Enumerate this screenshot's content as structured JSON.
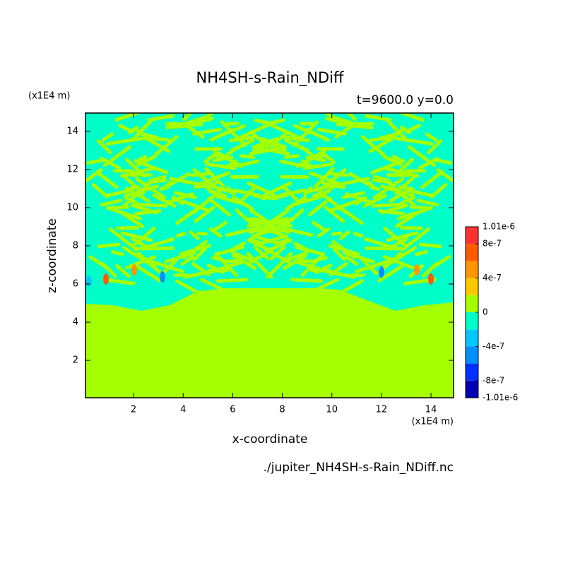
{
  "chart_data": {
    "type": "contour",
    "title": "NH4SH-s-Rain_NDiff",
    "subtitle": "t=9600.0 y=0.0",
    "x_label": "x-coordinate",
    "y_label": "z-coordinate",
    "x_unit": "(x1E4 m)",
    "y_unit": "(x1E4 m)",
    "footer": "./jupiter_NH4SH-s-Rain_NDiff.nc",
    "xlim": [
      0.06,
      14.91
    ],
    "ylim": [
      0.04,
      14.96
    ],
    "xticks": [
      2,
      4,
      6,
      8,
      10,
      12,
      14
    ],
    "yticks": [
      2,
      4,
      6,
      8,
      10,
      12,
      14
    ],
    "levels": [
      -1.01e-06,
      -8e-07,
      -6e-07,
      -4e-07,
      -2e-07,
      0,
      2e-07,
      4e-07,
      6e-07,
      8e-07,
      1.01e-06
    ],
    "colors": [
      "#0000b4",
      "#0030ff",
      "#0090ff",
      "#00c8ff",
      "#00ffc8",
      "#a5ff00",
      "#ffc800",
      "#ff9600",
      "#ff5a00",
      "#ff3232"
    ],
    "colorbar_ticks": [
      {
        "value": 1.01e-06,
        "label": "1.01e-6"
      },
      {
        "value": 8e-07,
        "label": "8e-7"
      },
      {
        "value": 4e-07,
        "label": "4e-7"
      },
      0,
      {
        "value": -4e-07,
        "label": "-4e-7"
      },
      {
        "value": -8e-07,
        "label": "-8e-7"
      },
      {
        "value": -1.01e-06,
        "label": "-1.01e-6"
      }
    ]
  }
}
